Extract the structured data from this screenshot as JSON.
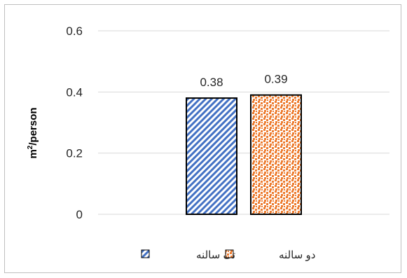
{
  "chart_data": {
    "type": "bar",
    "categories": [
      ""
    ],
    "series": [
      {
        "name": "تک سالنه",
        "values": [
          0.38
        ],
        "color": "#4472c4",
        "pattern": "diagonal-stripes"
      },
      {
        "name": "دو سالنه",
        "values": [
          0.39
        ],
        "color": "#ed7d31",
        "pattern": "dots"
      }
    ],
    "ylabel_base": "m",
    "ylabel_sup": "2",
    "ylabel_rest": "/person",
    "ylim": [
      0,
      0.6
    ],
    "yticks": [
      "0",
      "0.2",
      "0.4",
      "0.6"
    ],
    "data_labels": [
      "0.38",
      "0.39"
    ],
    "grid": true,
    "legend_position": "bottom"
  }
}
